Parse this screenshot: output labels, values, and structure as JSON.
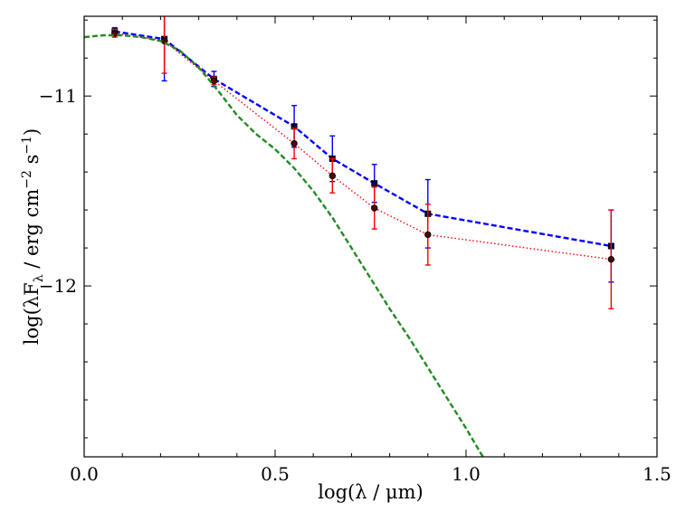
{
  "chart_data": {
    "type": "line",
    "xlabel": "log(λ / μm)",
    "ylabel_parts": {
      "pre": "log(λF",
      "sub": "λ",
      "mid1": " / erg cm",
      "sup1": "−2",
      "mid2": " s",
      "sup2": "−1",
      "post": ")"
    },
    "xlim": [
      0.0,
      1.5
    ],
    "ylim": [
      -12.9,
      -10.58
    ],
    "x_ticks": [
      0.0,
      0.5,
      1.0,
      1.5
    ],
    "x_tick_labels": [
      "0.0",
      "0.5",
      "1.0",
      "1.5"
    ],
    "y_ticks": [
      -11,
      -12
    ],
    "y_tick_labels": [
      "−11",
      "−12"
    ],
    "minor_x_ticks": [
      0.1,
      0.2,
      0.3,
      0.4,
      0.6,
      0.7,
      0.8,
      0.9,
      1.1,
      1.2,
      1.3,
      1.4
    ],
    "minor_y_ticks": [
      -10.6,
      -10.8,
      -11.2,
      -11.4,
      -11.6,
      -11.8,
      -12.2,
      -12.4,
      -12.6,
      -12.8
    ],
    "grid": false,
    "series": [
      {
        "style": "dashed",
        "color": "#0000ff",
        "marker": "square",
        "errorbar_color": "#0000ff",
        "x": [
          0.08,
          0.21,
          0.34,
          0.55,
          0.65,
          0.76,
          0.9,
          1.38
        ],
        "y": [
          -10.66,
          -10.7,
          -10.91,
          -11.16,
          -11.33,
          -11.46,
          -11.62,
          -11.79
        ],
        "yerr": [
          0.02,
          0.22,
          0.04,
          0.11,
          0.12,
          0.1,
          0.18,
          0.19
        ]
      },
      {
        "style": "dotted",
        "color": "#ff0000",
        "marker": "circle",
        "errorbar_color": "#ff0000",
        "x": [
          0.08,
          0.21,
          0.34,
          0.55,
          0.65,
          0.76,
          0.9,
          1.38
        ],
        "y": [
          -10.67,
          -10.71,
          -10.92,
          -11.25,
          -11.42,
          -11.59,
          -11.73,
          -11.86
        ],
        "yerr": [
          0.02,
          0.17,
          0.02,
          0.08,
          0.09,
          0.11,
          0.16,
          0.26
        ]
      },
      {
        "style": "dashed",
        "color": "#228b22",
        "marker": "none",
        "x": [
          0.0,
          0.05,
          0.1,
          0.15,
          0.2,
          0.25,
          0.3,
          0.35,
          0.4,
          0.45,
          0.5,
          0.55,
          0.6,
          0.65,
          0.7,
          0.75,
          0.8,
          0.85,
          0.9,
          0.95,
          1.0,
          1.05
        ],
        "y": [
          -10.69,
          -10.68,
          -10.68,
          -10.69,
          -10.71,
          -10.76,
          -10.85,
          -10.97,
          -11.1,
          -11.2,
          -11.28,
          -11.38,
          -11.5,
          -11.64,
          -11.8,
          -11.96,
          -12.12,
          -12.27,
          -12.43,
          -12.59,
          -12.75,
          -12.92
        ]
      }
    ]
  }
}
